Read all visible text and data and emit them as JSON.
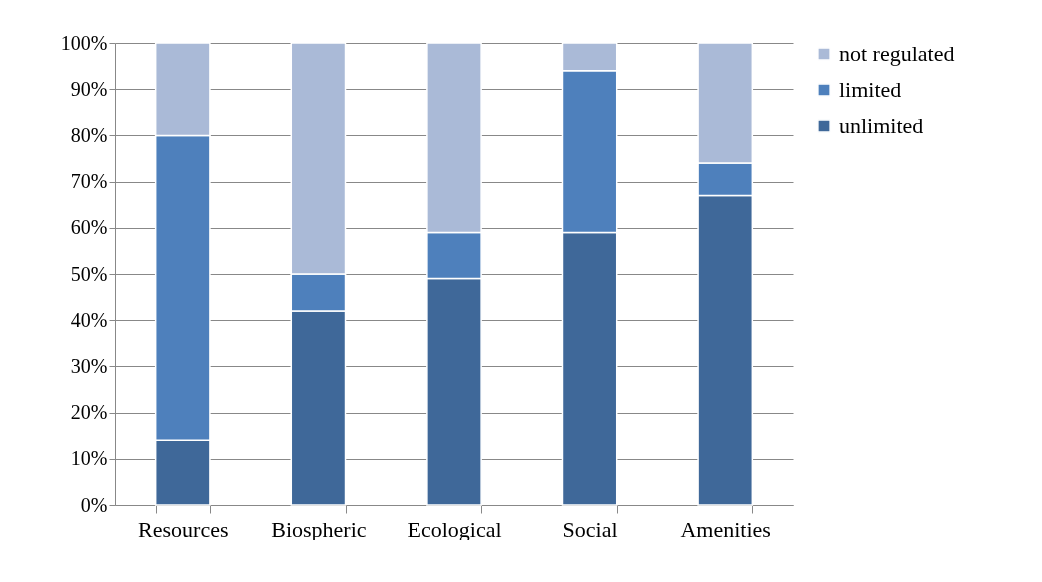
{
  "chart_data": {
    "type": "bar",
    "stacked": true,
    "categories": [
      "Resources",
      "Biospheric",
      "Ecological",
      "Social",
      "Amenities"
    ],
    "series": [
      {
        "name": "unlimited",
        "color": "#3f6899",
        "values": [
          14,
          42,
          49,
          59,
          67
        ]
      },
      {
        "name": "limited",
        "color": "#4e80bc",
        "values": [
          66,
          8,
          10,
          35,
          7
        ]
      },
      {
        "name": "not regulated",
        "color": "#aabad7",
        "values": [
          20,
          50,
          41,
          6,
          26
        ]
      }
    ],
    "ylim": [
      0,
      100
    ],
    "yticks": [
      {
        "value": 0,
        "label": "0%"
      },
      {
        "value": 10,
        "label": "10%"
      },
      {
        "value": 20,
        "label": "20%"
      },
      {
        "value": 30,
        "label": "30%"
      },
      {
        "value": 40,
        "label": "40%"
      },
      {
        "value": 50,
        "label": "50%"
      },
      {
        "value": 60,
        "label": "60%"
      },
      {
        "value": 70,
        "label": "70%"
      },
      {
        "value": 80,
        "label": "80%"
      },
      {
        "value": 90,
        "label": "90%"
      },
      {
        "value": 100,
        "label": "100%"
      }
    ],
    "grid": "y",
    "legend": "right"
  }
}
